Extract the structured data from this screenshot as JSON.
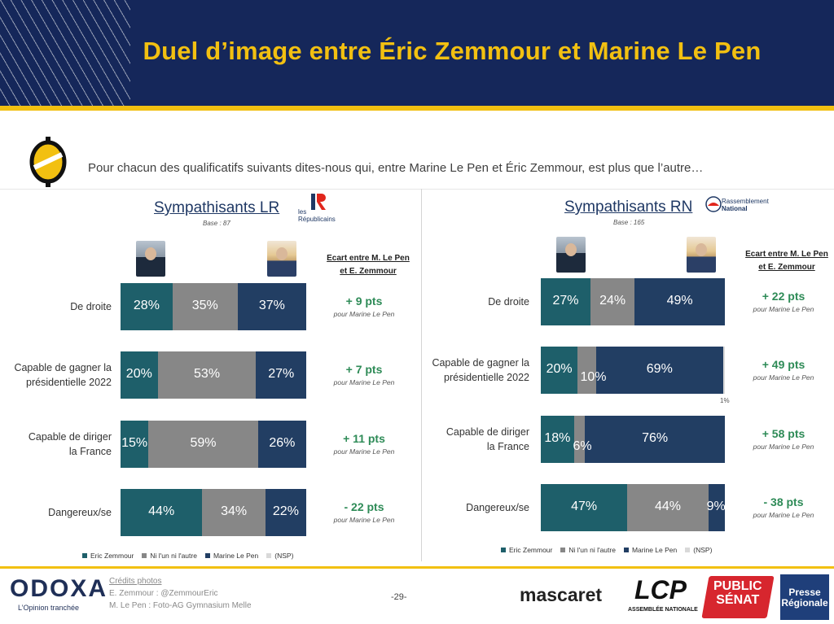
{
  "title": "Duel d’image entre Éric Zemmour et Marine Le Pen",
  "question": "Pour chacun des qualificatifs suivants dites-nous qui, entre Marine Le Pen et Éric Zemmour, est plus que l’autre…",
  "ecart_header_1": "Ecart entre M. Le Pen",
  "ecart_header_2": "et E. Zemmour",
  "panels": [
    {
      "title": "Sympathisants LR",
      "base": "Base : 87",
      "party_1": "les",
      "party_2": "Républicains",
      "rows": [
        {
          "label_1": "De droite",
          "label_2": "",
          "gap": "+ 9 pts",
          "gap_sub": "pour Marine Le Pen"
        },
        {
          "label_1": "Capable de gagner la",
          "label_2": "présidentielle 2022",
          "gap": "+ 7 pts",
          "gap_sub": "pour Marine Le Pen"
        },
        {
          "label_1": "Capable de diriger",
          "label_2": "la France",
          "gap": "+ 11 pts",
          "gap_sub": "pour Marine Le Pen"
        },
        {
          "label_1": "Dangereux/se",
          "label_2": "",
          "gap": "- 22 pts",
          "gap_sub": "pour Marine Le Pen"
        }
      ]
    },
    {
      "title": "Sympathisants RN",
      "base": "Base : 165",
      "party_1": "Rassemblement",
      "party_2": "National",
      "rows": [
        {
          "label_1": "De droite",
          "label_2": "",
          "gap": "+ 22 pts",
          "gap_sub": "pour Marine Le Pen"
        },
        {
          "label_1": "Capable de gagner la",
          "label_2": "présidentielle 2022",
          "gap": "+ 49 pts",
          "gap_sub": "pour Marine Le Pen"
        },
        {
          "label_1": "Capable de diriger",
          "label_2": "la France",
          "gap": "+ 58 pts",
          "gap_sub": "pour Marine Le Pen"
        },
        {
          "label_1": "Dangereux/se",
          "label_2": "",
          "gap": "- 38 pts",
          "gap_sub": "pour Marine Le Pen"
        }
      ]
    }
  ],
  "legend": [
    "Eric Zemmour",
    "Ni l'un ni l'autre",
    "Marine Le Pen",
    "(NSP)"
  ],
  "colors": {
    "zemmour": "#1e5f6a",
    "ni": "#878787",
    "lepen": "#223e63",
    "nsp": "#d9d9d9",
    "gold": "#f2c011",
    "navy": "#15275a"
  },
  "chart_data": [
    {
      "type": "bar",
      "stacked": true,
      "orientation": "horizontal",
      "title": "Sympathisants LR",
      "categories": [
        "De droite",
        "Capable de gagner la présidentielle 2022",
        "Capable de diriger la France",
        "Dangereux/se"
      ],
      "series": [
        {
          "name": "Eric Zemmour",
          "values": [
            28,
            20,
            15,
            44
          ]
        },
        {
          "name": "Ni l'un ni l'autre",
          "values": [
            35,
            53,
            59,
            34
          ]
        },
        {
          "name": "Marine Le Pen",
          "values": [
            37,
            27,
            26,
            22
          ]
        },
        {
          "name": "(NSP)",
          "values": [
            0,
            0,
            0,
            0
          ]
        }
      ],
      "xlim": [
        0,
        100
      ]
    },
    {
      "type": "bar",
      "stacked": true,
      "orientation": "horizontal",
      "title": "Sympathisants RN",
      "categories": [
        "De droite",
        "Capable de gagner la présidentielle 2022",
        "Capable de diriger la France",
        "Dangereux/se"
      ],
      "series": [
        {
          "name": "Eric Zemmour",
          "values": [
            27,
            20,
            18,
            47
          ]
        },
        {
          "name": "Ni l'un ni l'autre",
          "values": [
            24,
            10,
            6,
            44
          ]
        },
        {
          "name": "Marine Le Pen",
          "values": [
            49,
            69,
            76,
            9
          ]
        },
        {
          "name": "(NSP)",
          "values": [
            0,
            1,
            0,
            0
          ]
        }
      ],
      "xlim": [
        0,
        100
      ]
    }
  ],
  "footer": {
    "odoxa": "ODOXA",
    "odoxa_sub": "L’Opinion tranchée",
    "credits_title": "Crédits photos",
    "credit_1": "E. Zemmour : @ZemmourEric",
    "credit_2": "M. Le Pen : Foto-AG Gymnasium Melle",
    "page": "-29-",
    "mascaret": "mascaret",
    "lcp": "LCP",
    "lcp_sub": "ASSEMBLÉE NATIONALE",
    "ps_1": "PUBLIC",
    "ps_2": "SÉNAT",
    "pr_1": "Presse",
    "pr_2": "Régionale"
  }
}
